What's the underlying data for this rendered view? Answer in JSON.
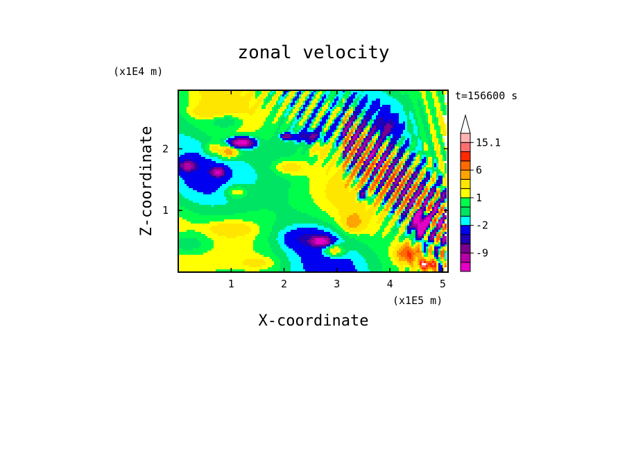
{
  "chart_data": {
    "type": "heatmap",
    "title": "zonal velocity",
    "xlabel": "X-coordinate",
    "ylabel": "Z-coordinate",
    "x_scale_label": "(x1E5 m)",
    "y_scale_label": "(x1E4 m)",
    "time_label": "t=156600 s",
    "xlim": [
      0,
      5.1
    ],
    "ylim": [
      0,
      2.95
    ],
    "x_ticks": [
      1,
      2,
      3,
      4,
      5
    ],
    "y_ticks": [
      1,
      2
    ],
    "colorbar": {
      "levels": [
        -15,
        -12,
        -9,
        -6,
        -4,
        -2,
        -1,
        0,
        1,
        2,
        4,
        6,
        9,
        12,
        15.1
      ],
      "colors": [
        "#e400c4",
        "#b400a6",
        "#7a008e",
        "#1f00b4",
        "#0000f0",
        "#00ffff",
        "#00e464",
        "#00ff4b",
        "#ffff00",
        "#ffe600",
        "#ffa400",
        "#ff6a00",
        "#ff2a00",
        "#ff6e6e",
        "#ffb4b4"
      ],
      "overflow_color": "#ffffff",
      "labels": [
        "15.1",
        "6",
        "1",
        "-2",
        "-9"
      ],
      "label_values": [
        15.1,
        6,
        1,
        -2,
        -9
      ]
    },
    "legend_placement": "right",
    "grid": false
  }
}
